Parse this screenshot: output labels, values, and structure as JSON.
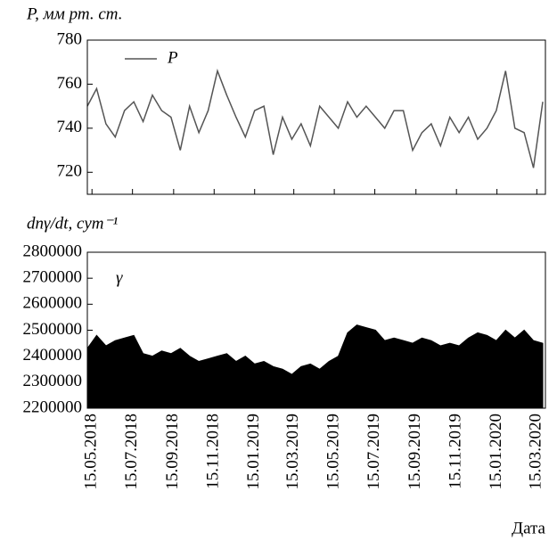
{
  "chart_data": [
    {
      "type": "line",
      "title": "P, мм рт. ст.",
      "x": [
        "08.05.2018",
        "22.05.2018",
        "05.06.2018",
        "19.06.2018",
        "03.07.2018",
        "17.07.2018",
        "31.07.2018",
        "14.08.2018",
        "28.08.2018",
        "11.09.2018",
        "25.09.2018",
        "09.10.2018",
        "23.10.2018",
        "06.11.2018",
        "20.11.2018",
        "04.12.2018",
        "18.12.2018",
        "01.01.2019",
        "15.01.2019",
        "29.01.2019",
        "12.02.2019",
        "26.02.2019",
        "12.03.2019",
        "26.03.2019",
        "09.04.2019",
        "23.04.2019",
        "07.05.2019",
        "21.05.2019",
        "04.06.2019",
        "18.06.2019",
        "02.07.2019",
        "16.07.2019",
        "30.07.2019",
        "13.08.2019",
        "27.08.2019",
        "10.09.2019",
        "24.09.2019",
        "08.10.2019",
        "22.10.2019",
        "05.11.2019",
        "19.11.2019",
        "03.12.2019",
        "17.12.2019",
        "31.12.2019",
        "14.01.2020",
        "28.01.2020",
        "11.02.2020",
        "25.02.2020",
        "10.03.2020",
        "24.03.2020"
      ],
      "series": [
        {
          "name": "P",
          "color": "#555555",
          "values": [
            750,
            758,
            742,
            736,
            748,
            752,
            743,
            755,
            748,
            745,
            730,
            750,
            738,
            748,
            766,
            755,
            745,
            736,
            748,
            750,
            728,
            745,
            735,
            742,
            732,
            750,
            745,
            740,
            752,
            745,
            750,
            745,
            740,
            748,
            748,
            730,
            738,
            742,
            732,
            745,
            738,
            745,
            735,
            740,
            748,
            766,
            740,
            738,
            722,
            752
          ]
        }
      ],
      "xlim": [
        "08.05.2018",
        "28.03.2020"
      ],
      "xticks": [
        "15.05.2018",
        "15.07.2018",
        "15.09.2018",
        "15.11.2018",
        "15.01.2019",
        "15.03.2019",
        "15.05.2019",
        "15.07.2019",
        "15.09.2019",
        "15.11.2019",
        "15.01.2020",
        "15.03.2020"
      ],
      "ylim": [
        710,
        780
      ],
      "yticks": [
        720,
        740,
        760,
        780
      ]
    },
    {
      "type": "area",
      "title": "dnγ/dt, сут⁻¹",
      "xlabel": "Дата",
      "x": [
        "08.05.2018",
        "22.05.2018",
        "05.06.2018",
        "19.06.2018",
        "03.07.2018",
        "17.07.2018",
        "31.07.2018",
        "14.08.2018",
        "28.08.2018",
        "11.09.2018",
        "25.09.2018",
        "09.10.2018",
        "23.10.2018",
        "06.11.2018",
        "20.11.2018",
        "04.12.2018",
        "18.12.2018",
        "01.01.2019",
        "15.01.2019",
        "29.01.2019",
        "12.02.2019",
        "26.02.2019",
        "12.03.2019",
        "26.03.2019",
        "09.04.2019",
        "23.04.2019",
        "07.05.2019",
        "21.05.2019",
        "04.06.2019",
        "18.06.2019",
        "02.07.2019",
        "16.07.2019",
        "30.07.2019",
        "13.08.2019",
        "27.08.2019",
        "10.09.2019",
        "24.09.2019",
        "08.10.2019",
        "22.10.2019",
        "05.11.2019",
        "19.11.2019",
        "03.12.2019",
        "17.12.2019",
        "31.12.2019",
        "14.01.2020",
        "28.01.2020",
        "11.02.2020",
        "25.02.2020",
        "10.03.2020",
        "24.03.2020"
      ],
      "series": [
        {
          "name": "γ",
          "color": "#000000",
          "values": [
            2430000,
            2480000,
            2440000,
            2460000,
            2470000,
            2480000,
            2410000,
            2400000,
            2420000,
            2410000,
            2430000,
            2400000,
            2380000,
            2390000,
            2400000,
            2410000,
            2380000,
            2400000,
            2370000,
            2380000,
            2360000,
            2350000,
            2330000,
            2360000,
            2370000,
            2350000,
            2380000,
            2400000,
            2490000,
            2520000,
            2510000,
            2500000,
            2460000,
            2470000,
            2460000,
            2450000,
            2470000,
            2460000,
            2440000,
            2450000,
            2440000,
            2470000,
            2490000,
            2480000,
            2460000,
            2500000,
            2470000,
            2500000,
            2460000,
            2450000
          ]
        }
      ],
      "xlim": [
        "08.05.2018",
        "28.03.2020"
      ],
      "xticks": [
        "15.05.2018",
        "15.07.2018",
        "15.09.2018",
        "15.11.2018",
        "15.01.2019",
        "15.03.2019",
        "15.05.2019",
        "15.07.2019",
        "15.09.2019",
        "15.11.2019",
        "15.01.2020",
        "15.03.2020"
      ],
      "ylim": [
        2200000,
        2800000
      ],
      "yticks": [
        2200000,
        2300000,
        2400000,
        2500000,
        2600000,
        2700000,
        2800000
      ]
    }
  ]
}
